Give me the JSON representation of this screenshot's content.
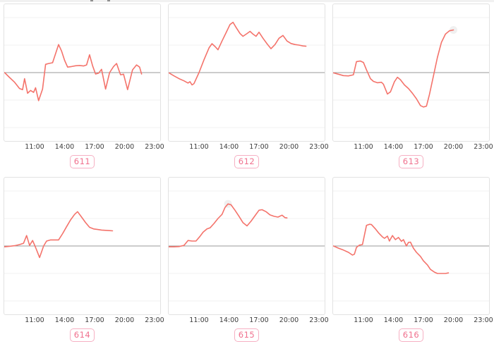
{
  "page": {
    "background": "#ffffff"
  },
  "style": {
    "line_color": "#f4736b",
    "zero_line_color": "#9a9a9a",
    "grid_color": "#f2f2f2",
    "box_border_color": "#e2e2e2",
    "tick_color": "#3c3c3c",
    "badge_text_color": "#f0718e",
    "badge_border_color": "#f6b0c3",
    "marker_color": "#e3e3e3"
  },
  "axis": {
    "ticks": [
      {
        "label": "11:00",
        "hour": 11
      },
      {
        "label": "14:00",
        "hour": 14
      },
      {
        "label": "17:00",
        "hour": 17
      },
      {
        "label": "20:00",
        "hour": 20
      },
      {
        "label": "23:00",
        "hour": 23
      }
    ]
  },
  "chart_data": [
    {
      "type": "line",
      "label": "611",
      "x_unit": "time_of_day_hours",
      "y_unit": "gridline_units_from_baseline",
      "x_range": [
        8,
        23.6
      ],
      "ylim": [
        -2.5,
        2.5
      ],
      "y_gridlines": [
        -2,
        -1,
        0,
        1,
        2
      ],
      "legend": "none",
      "marker": null,
      "points": [
        [
          8,
          0
        ],
        [
          8.5,
          -0.18
        ],
        [
          9,
          -0.35
        ],
        [
          9.5,
          -0.58
        ],
        [
          9.8,
          -0.62
        ],
        [
          10,
          -0.22
        ],
        [
          10.3,
          -0.75
        ],
        [
          10.6,
          -0.65
        ],
        [
          10.9,
          -0.72
        ],
        [
          11.1,
          -0.55
        ],
        [
          11.4,
          -1.02
        ],
        [
          11.8,
          -0.6
        ],
        [
          12.1,
          0.3
        ],
        [
          12.4,
          0.33
        ],
        [
          12.8,
          0.36
        ],
        [
          13.4,
          1.02
        ],
        [
          13.7,
          0.78
        ],
        [
          14,
          0.45
        ],
        [
          14.3,
          0.2
        ],
        [
          14.7,
          0.22
        ],
        [
          15.1,
          0.25
        ],
        [
          15.5,
          0.26
        ],
        [
          15.9,
          0.24
        ],
        [
          16.2,
          0.28
        ],
        [
          16.5,
          0.65
        ],
        [
          16.8,
          0.25
        ],
        [
          17.1,
          -0.05
        ],
        [
          17.4,
          -0.02
        ],
        [
          17.7,
          0.12
        ],
        [
          18.1,
          -0.6
        ],
        [
          18.5,
          0
        ],
        [
          18.9,
          0.22
        ],
        [
          19.2,
          0.33
        ],
        [
          19.6,
          -0.08
        ],
        [
          19.9,
          -0.06
        ],
        [
          20.3,
          -0.62
        ],
        [
          20.8,
          0.1
        ],
        [
          21.2,
          0.28
        ],
        [
          21.5,
          0.2
        ],
        [
          21.7,
          -0.05
        ]
      ]
    },
    {
      "type": "line",
      "label": "612",
      "x_unit": "time_of_day_hours",
      "y_unit": "gridline_units_from_baseline",
      "x_range": [
        8,
        23.6
      ],
      "ylim": [
        -2.5,
        2.5
      ],
      "y_gridlines": [
        -2,
        -1,
        0,
        1,
        2
      ],
      "legend": "none",
      "marker": null,
      "points": [
        [
          8,
          -0.01
        ],
        [
          8.5,
          -0.12
        ],
        [
          9,
          -0.22
        ],
        [
          9.5,
          -0.3
        ],
        [
          9.9,
          -0.38
        ],
        [
          10.1,
          -0.33
        ],
        [
          10.3,
          -0.45
        ],
        [
          10.5,
          -0.4
        ],
        [
          11,
          0
        ],
        [
          11.5,
          0.47
        ],
        [
          12,
          0.9
        ],
        [
          12.3,
          1.05
        ],
        [
          12.6,
          0.95
        ],
        [
          12.9,
          0.83
        ],
        [
          13.3,
          1.15
        ],
        [
          13.7,
          1.45
        ],
        [
          14.1,
          1.75
        ],
        [
          14.4,
          1.83
        ],
        [
          14.7,
          1.65
        ],
        [
          15.1,
          1.42
        ],
        [
          15.4,
          1.32
        ],
        [
          15.8,
          1.42
        ],
        [
          16.1,
          1.5
        ],
        [
          16.4,
          1.4
        ],
        [
          16.7,
          1.32
        ],
        [
          17,
          1.47
        ],
        [
          17.4,
          1.25
        ],
        [
          17.8,
          1.05
        ],
        [
          18.2,
          0.87
        ],
        [
          18.6,
          1.02
        ],
        [
          19,
          1.25
        ],
        [
          19.4,
          1.35
        ],
        [
          19.8,
          1.15
        ],
        [
          20.2,
          1.06
        ],
        [
          20.6,
          1.02
        ],
        [
          21,
          1
        ],
        [
          21.4,
          0.97
        ],
        [
          21.7,
          0.96
        ]
      ]
    },
    {
      "type": "line",
      "label": "613",
      "x_unit": "time_of_day_hours",
      "y_unit": "gridline_units_from_baseline",
      "x_range": [
        8,
        23.6
      ],
      "ylim": [
        -2.5,
        2.5
      ],
      "y_gridlines": [
        -2,
        -1,
        0,
        1,
        2
      ],
      "legend": "none",
      "marker": {
        "hour": 20,
        "value": 1.55
      },
      "points": [
        [
          8,
          -0.01
        ],
        [
          8.5,
          -0.06
        ],
        [
          9,
          -0.11
        ],
        [
          9.5,
          -0.12
        ],
        [
          10,
          -0.08
        ],
        [
          10.3,
          0.4
        ],
        [
          10.7,
          0.42
        ],
        [
          11,
          0.37
        ],
        [
          11.3,
          0.1
        ],
        [
          11.7,
          -0.22
        ],
        [
          12,
          -0.32
        ],
        [
          12.4,
          -0.37
        ],
        [
          12.8,
          -0.35
        ],
        [
          13,
          -0.42
        ],
        [
          13.4,
          -0.78
        ],
        [
          13.7,
          -0.7
        ],
        [
          14.1,
          -0.33
        ],
        [
          14.4,
          -0.17
        ],
        [
          14.7,
          -0.26
        ],
        [
          15.1,
          -0.45
        ],
        [
          15.5,
          -0.58
        ],
        [
          15.9,
          -0.75
        ],
        [
          16.3,
          -0.95
        ],
        [
          16.7,
          -1.2
        ],
        [
          17,
          -1.25
        ],
        [
          17.3,
          -1.22
        ],
        [
          17.6,
          -0.8
        ],
        [
          18,
          -0.12
        ],
        [
          18.4,
          0.55
        ],
        [
          18.8,
          1.1
        ],
        [
          19.2,
          1.4
        ],
        [
          19.6,
          1.52
        ],
        [
          20,
          1.55
        ]
      ]
    },
    {
      "type": "line",
      "label": "614",
      "x_unit": "time_of_day_hours",
      "y_unit": "gridline_units_from_baseline",
      "x_range": [
        8,
        23.6
      ],
      "ylim": [
        -2.5,
        2.5
      ],
      "y_gridlines": [
        -2,
        -1,
        0,
        1,
        2
      ],
      "legend": "none",
      "marker": null,
      "points": [
        [
          8,
          -0.03
        ],
        [
          8.5,
          -0.01
        ],
        [
          9,
          0.01
        ],
        [
          9.5,
          0.05
        ],
        [
          9.9,
          0.1
        ],
        [
          10.2,
          0.38
        ],
        [
          10.5,
          0.02
        ],
        [
          10.8,
          0.2
        ],
        [
          11.1,
          -0.05
        ],
        [
          11.5,
          -0.42
        ],
        [
          11.9,
          0
        ],
        [
          12.2,
          0.18
        ],
        [
          12.6,
          0.22
        ],
        [
          13,
          0.22
        ],
        [
          13.4,
          0.22
        ],
        [
          13.8,
          0.45
        ],
        [
          14.2,
          0.7
        ],
        [
          14.6,
          0.95
        ],
        [
          15,
          1.15
        ],
        [
          15.3,
          1.25
        ],
        [
          15.7,
          1.05
        ],
        [
          16.1,
          0.85
        ],
        [
          16.5,
          0.68
        ],
        [
          16.9,
          0.62
        ],
        [
          17.3,
          0.6
        ],
        [
          17.7,
          0.58
        ],
        [
          18.1,
          0.57
        ],
        [
          18.5,
          0.56
        ],
        [
          18.8,
          0.55
        ]
      ]
    },
    {
      "type": "line",
      "label": "615",
      "x_unit": "time_of_day_hours",
      "y_unit": "gridline_units_from_baseline",
      "x_range": [
        8,
        23.6
      ],
      "ylim": [
        -2.5,
        2.5
      ],
      "y_gridlines": [
        -2,
        -1,
        0,
        1,
        2
      ],
      "legend": "none",
      "marker": {
        "hour": 13.9,
        "value": 1.53
      },
      "points": [
        [
          8,
          -0.03
        ],
        [
          8.5,
          -0.03
        ],
        [
          9,
          -0.02
        ],
        [
          9.5,
          0.02
        ],
        [
          9.9,
          0.2
        ],
        [
          10.3,
          0.18
        ],
        [
          10.7,
          0.18
        ],
        [
          11.1,
          0.35
        ],
        [
          11.4,
          0.5
        ],
        [
          11.8,
          0.62
        ],
        [
          12.1,
          0.66
        ],
        [
          12.5,
          0.82
        ],
        [
          12.9,
          1
        ],
        [
          13.3,
          1.15
        ],
        [
          13.6,
          1.4
        ],
        [
          13.9,
          1.53
        ],
        [
          14.2,
          1.5
        ],
        [
          14.6,
          1.3
        ],
        [
          15,
          1.08
        ],
        [
          15.4,
          0.85
        ],
        [
          15.8,
          0.73
        ],
        [
          16.2,
          0.9
        ],
        [
          16.6,
          1.1
        ],
        [
          17,
          1.3
        ],
        [
          17.3,
          1.32
        ],
        [
          17.7,
          1.25
        ],
        [
          18.1,
          1.13
        ],
        [
          18.5,
          1.08
        ],
        [
          18.9,
          1.05
        ],
        [
          19.3,
          1.12
        ],
        [
          19.6,
          1.03
        ],
        [
          19.8,
          1.02
        ]
      ]
    },
    {
      "type": "line",
      "label": "616",
      "x_unit": "time_of_day_hours",
      "y_unit": "gridline_units_from_baseline",
      "x_range": [
        8,
        23.6
      ],
      "ylim": [
        -2.5,
        2.5
      ],
      "y_gridlines": [
        -2,
        -1,
        0,
        1,
        2
      ],
      "legend": "none",
      "marker": null,
      "points": [
        [
          8,
          0
        ],
        [
          8.5,
          -0.08
        ],
        [
          9,
          -0.15
        ],
        [
          9.5,
          -0.23
        ],
        [
          9.9,
          -0.33
        ],
        [
          10.1,
          -0.3
        ],
        [
          10.3,
          -0.05
        ],
        [
          10.6,
          0.03
        ],
        [
          10.9,
          0.05
        ],
        [
          11.3,
          0.75
        ],
        [
          11.6,
          0.79
        ],
        [
          11.8,
          0.78
        ],
        [
          12.2,
          0.62
        ],
        [
          12.5,
          0.48
        ],
        [
          12.9,
          0.33
        ],
        [
          13.1,
          0.28
        ],
        [
          13.4,
          0.36
        ],
        [
          13.6,
          0.18
        ],
        [
          13.9,
          0.38
        ],
        [
          14.2,
          0.23
        ],
        [
          14.5,
          0.31
        ],
        [
          14.8,
          0.17
        ],
        [
          15,
          0.23
        ],
        [
          15.3,
          0
        ],
        [
          15.5,
          0.13
        ],
        [
          15.7,
          0.14
        ],
        [
          16,
          -0.08
        ],
        [
          16.3,
          -0.23
        ],
        [
          16.7,
          -0.38
        ],
        [
          17,
          -0.54
        ],
        [
          17.4,
          -0.69
        ],
        [
          17.7,
          -0.85
        ],
        [
          18.1,
          -0.95
        ],
        [
          18.4,
          -1
        ],
        [
          18.9,
          -1
        ],
        [
          19.2,
          -1
        ],
        [
          19.5,
          -0.98
        ]
      ]
    }
  ]
}
